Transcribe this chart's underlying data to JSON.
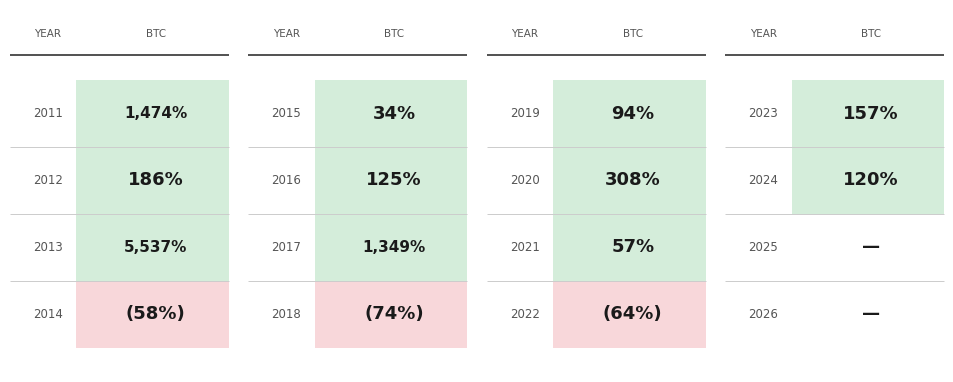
{
  "tables": [
    {
      "rows": [
        {
          "year": "2011",
          "btc": "1,474%",
          "bg": "green"
        },
        {
          "year": "2012",
          "btc": "186%",
          "bg": "green"
        },
        {
          "year": "2013",
          "btc": "5,537%",
          "bg": "green"
        },
        {
          "year": "2014",
          "btc": "(58%)",
          "bg": "red"
        }
      ]
    },
    {
      "rows": [
        {
          "year": "2015",
          "btc": "34%",
          "bg": "green"
        },
        {
          "year": "2016",
          "btc": "125%",
          "bg": "green"
        },
        {
          "year": "2017",
          "btc": "1,349%",
          "bg": "green"
        },
        {
          "year": "2018",
          "btc": "(74%)",
          "bg": "red"
        }
      ]
    },
    {
      "rows": [
        {
          "year": "2019",
          "btc": "94%",
          "bg": "green"
        },
        {
          "year": "2020",
          "btc": "308%",
          "bg": "green"
        },
        {
          "year": "2021",
          "btc": "57%",
          "bg": "green"
        },
        {
          "year": "2022",
          "btc": "(64%)",
          "bg": "red"
        }
      ]
    },
    {
      "rows": [
        {
          "year": "2023",
          "btc": "157%",
          "bg": "green"
        },
        {
          "year": "2024",
          "btc": "120%",
          "bg": "green"
        },
        {
          "year": "2025",
          "btc": "—",
          "bg": "none"
        },
        {
          "year": "2026",
          "btc": "—",
          "bg": "none"
        }
      ]
    }
  ],
  "header_year": "YEAR",
  "header_btc": "BTC",
  "green_color": "#d4edda",
  "red_color": "#f8d7da",
  "fig_bg": "#ffffff",
  "text_color": "#1a1a1a",
  "header_color": "#555555",
  "year_color": "#555555",
  "divider_color": "#cccccc",
  "top_line_color": "#333333"
}
